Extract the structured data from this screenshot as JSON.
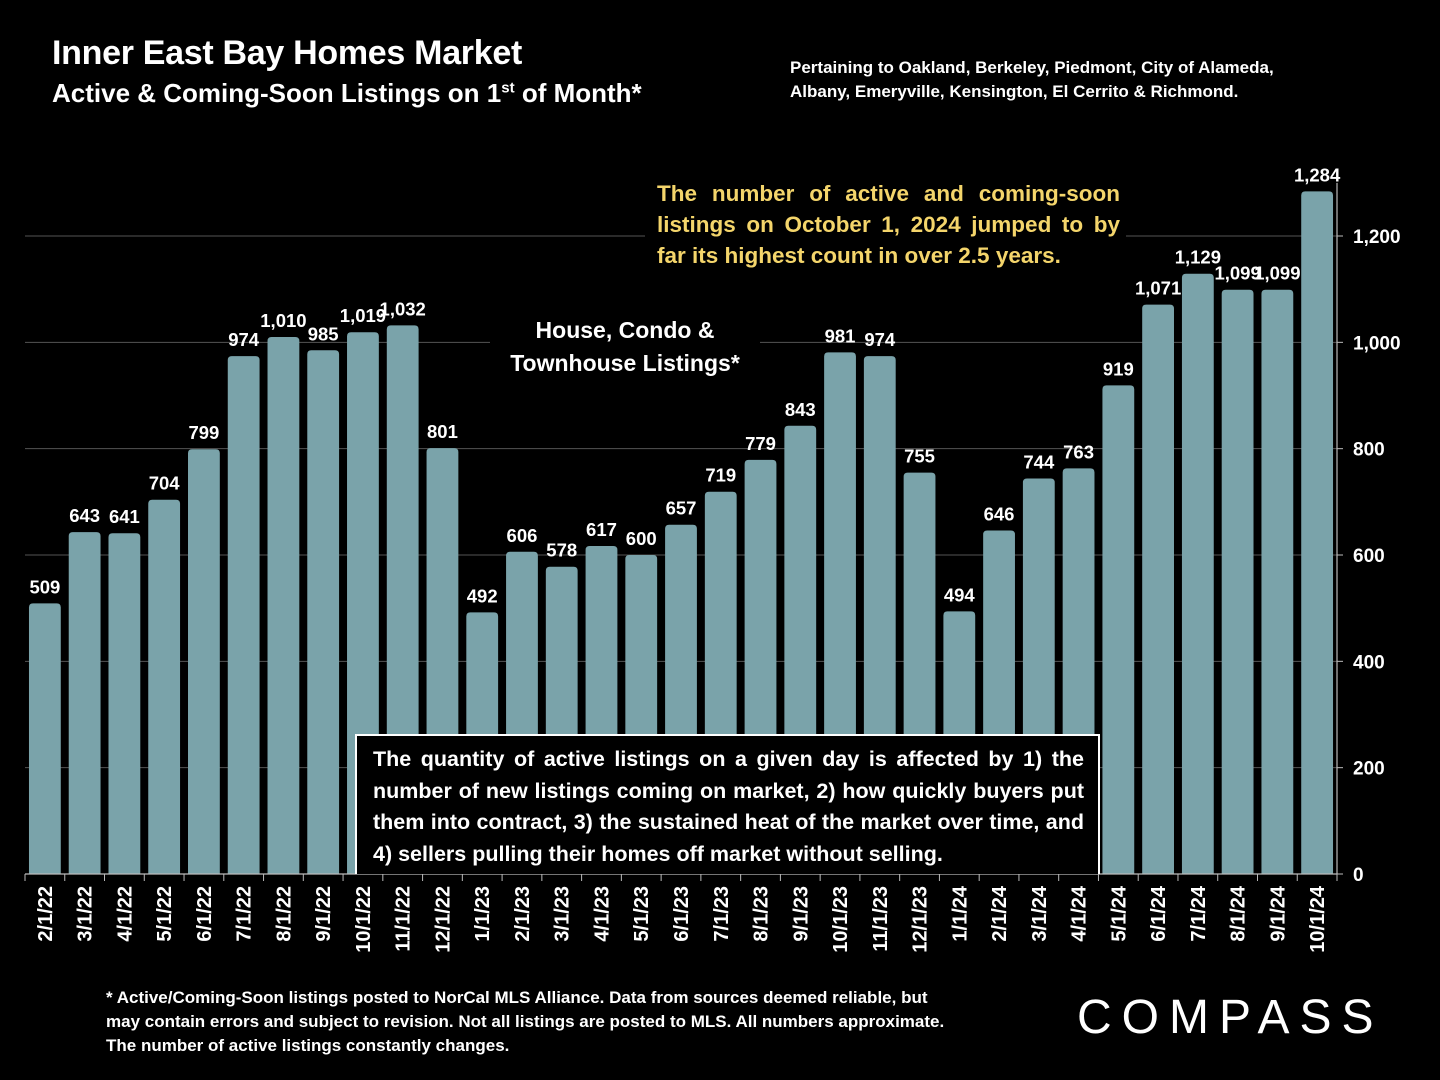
{
  "header": {
    "title": "Inner East Bay Homes Market",
    "subtitle_pre": "Active & Coming-Soon Listings on 1",
    "subtitle_sup": "st",
    "subtitle_post": " of Month*",
    "coverage_note": "Pertaining to Oakland, Berkeley, Piedmont, City of Alameda, Albany, Emeryville, Kensington, El Cerrito & Richmond."
  },
  "annotations": {
    "series_label_line1": "House, Condo &",
    "series_label_line2": "Townhouse Listings*",
    "highlight": "The number of active and coming-soon listings on October 1, 2024 jumped to by far its highest count in over 2.5 years.",
    "explanation": "The quantity of active listings on a given day is affected by 1) the number of new listings coming on market, 2) how quickly buyers put them into contract, 3) the sustained heat of the market over time, and 4) sellers pulling their homes off market without selling."
  },
  "footnote": "* Active/Coming-Soon listings posted to NorCal MLS Alliance.  Data from sources deemed reliable, but may contain errors and subject to revision.  Not all listings are posted to MLS. All numbers approximate. The number of active listings constantly changes.",
  "brand": {
    "logo_text": "COMPASS"
  },
  "colors": {
    "background": "#000000",
    "bar": "#7aa3aa",
    "text": "#ffffff",
    "highlight_text": "#f4d56b",
    "grid": "#555555"
  },
  "chart_data": {
    "type": "bar",
    "categories": [
      "2/1/22",
      "3/1/22",
      "4/1/22",
      "5/1/22",
      "6/1/22",
      "7/1/22",
      "8/1/22",
      "9/1/22",
      "10/1/22",
      "11/1/22",
      "12/1/22",
      "1/1/23",
      "2/1/23",
      "3/1/23",
      "4/1/23",
      "5/1/23",
      "6/1/23",
      "7/1/23",
      "8/1/23",
      "9/1/23",
      "10/1/23",
      "11/1/23",
      "12/1/23",
      "1/1/24",
      "2/1/24",
      "3/1/24",
      "4/1/24",
      "5/1/24",
      "6/1/24",
      "7/1/24",
      "8/1/24",
      "9/1/24",
      "10/1/24"
    ],
    "values": [
      509,
      643,
      641,
      704,
      799,
      974,
      1010,
      985,
      1019,
      1032,
      801,
      492,
      606,
      578,
      617,
      600,
      657,
      719,
      779,
      843,
      981,
      974,
      755,
      494,
      646,
      744,
      763,
      919,
      1071,
      1129,
      1099,
      1099,
      1284
    ],
    "labels": [
      "509",
      "643",
      "641",
      "704",
      "799",
      "974",
      "1,010",
      "985",
      "1,019",
      "1,032",
      "801",
      "492",
      "606",
      "578",
      "617",
      "600",
      "657",
      "719",
      "779",
      "843",
      "981",
      "974",
      "755",
      "494",
      "646",
      "744",
      "763",
      "919",
      "1,071",
      "1,129",
      "1,099",
      "1,099",
      "1,284"
    ],
    "ylim": [
      0,
      1300
    ],
    "yticks": [
      0,
      200,
      400,
      600,
      800,
      1000,
      1200
    ],
    "ytick_labels": [
      "0",
      "200",
      "400",
      "600",
      "800",
      "1,000",
      "1,200"
    ],
    "y_axis_side": "right",
    "grid": true
  }
}
